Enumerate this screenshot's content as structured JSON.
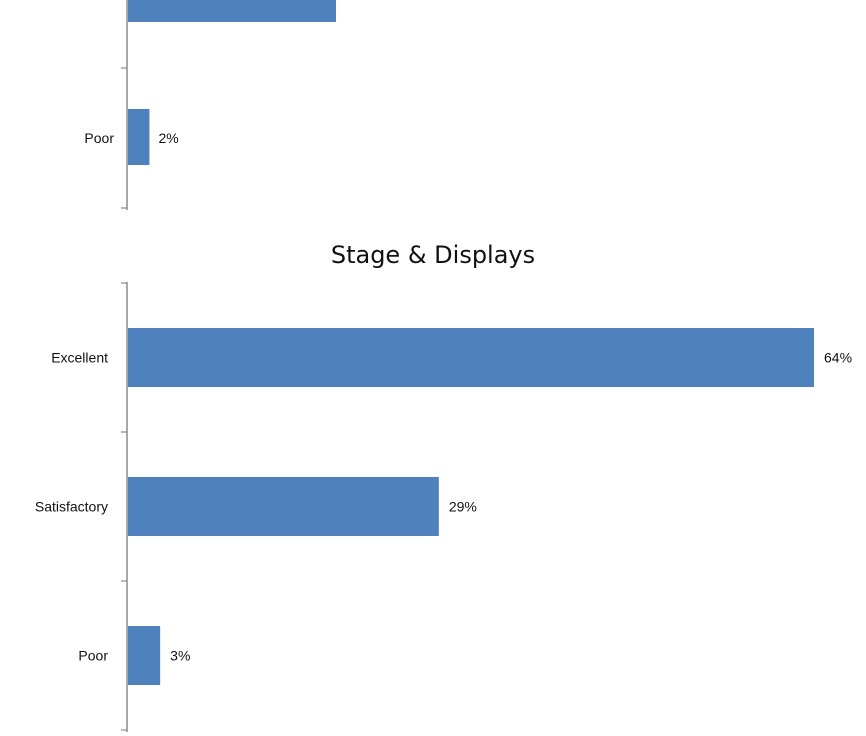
{
  "chart_data": [
    {
      "type": "bar",
      "orientation": "horizontal",
      "title": "",
      "categories": [
        "",
        "Poor"
      ],
      "values": [
        null,
        2
      ],
      "value_suffix": "%",
      "bar_color": "#4f81bd",
      "xlim": [
        0,
        64
      ],
      "grid": false,
      "note": ""
    },
    {
      "type": "bar",
      "orientation": "horizontal",
      "title": "Stage & Displays",
      "categories": [
        "Excellent",
        "Satisfactory",
        "Poor"
      ],
      "values": [
        64,
        29,
        3
      ],
      "value_suffix": "%",
      "bar_color": "#4f81bd",
      "xlim": [
        0,
        64
      ],
      "grid": false
    }
  ]
}
